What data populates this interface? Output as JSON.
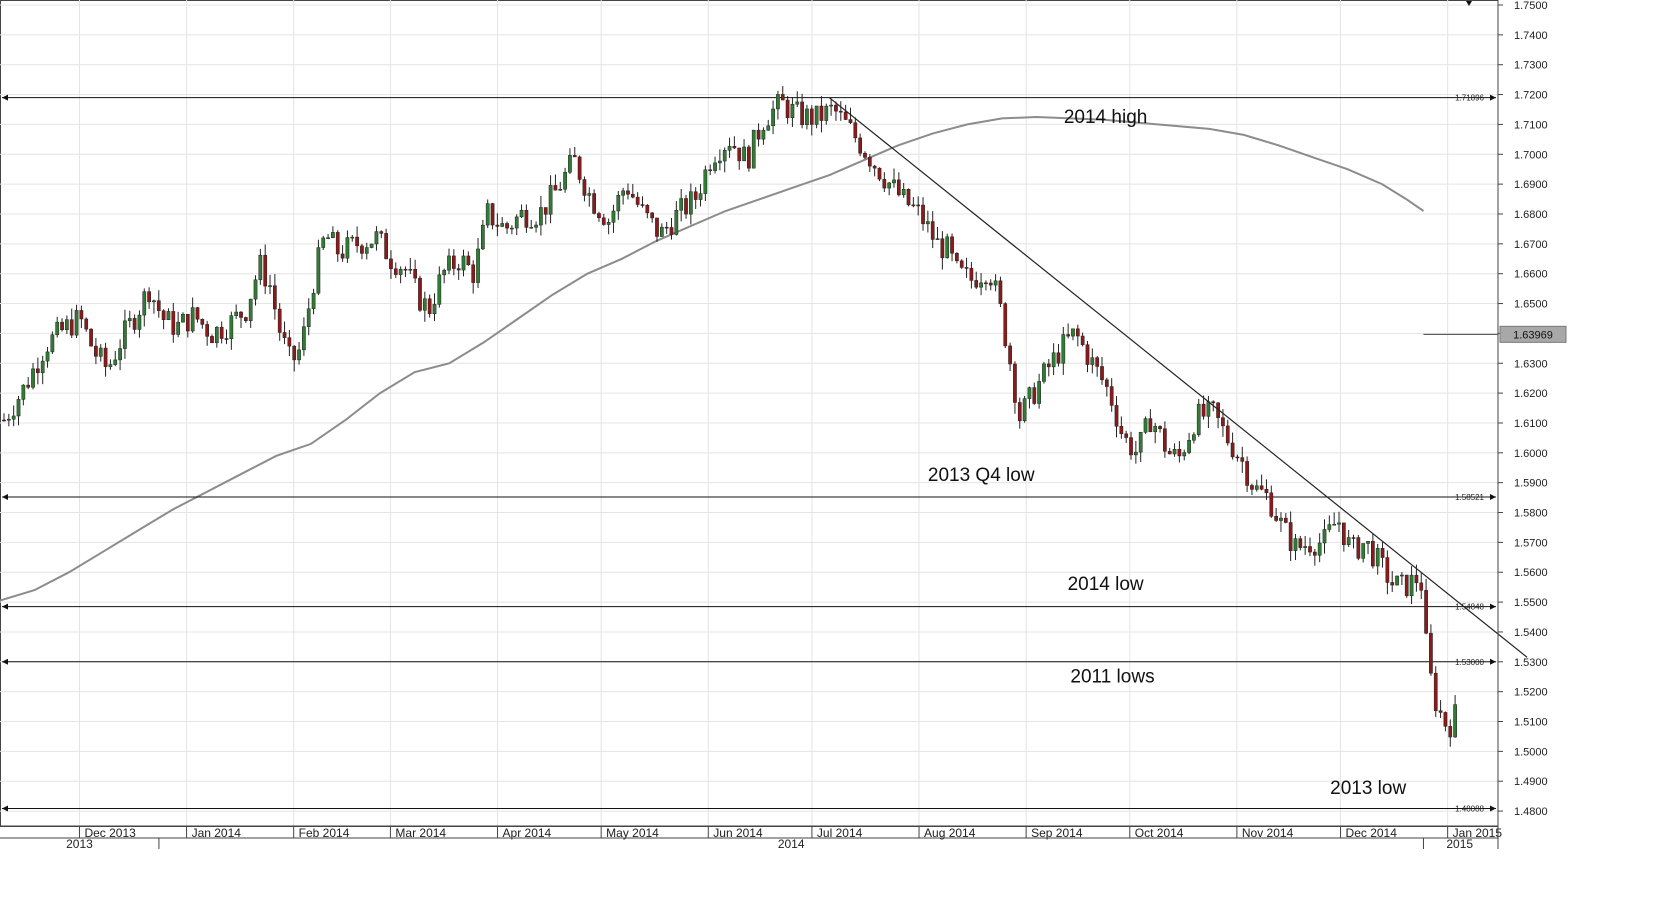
{
  "chart_data": {
    "type": "candlestick",
    "title": "",
    "xlabel": "",
    "ylabel": "",
    "ylim": [
      1.475,
      1.75
    ],
    "grid": true,
    "y_ticks": [
      "1.4800",
      "1.4900",
      "1.5000",
      "1.5100",
      "1.5200",
      "1.5300",
      "1.5400",
      "1.5500",
      "1.5600",
      "1.5700",
      "1.5800",
      "1.5900",
      "1.6000",
      "1.6100",
      "1.6200",
      "1.6300",
      "1.6400",
      "1.6500",
      "1.6600",
      "1.6700",
      "1.6800",
      "1.6900",
      "1.7000",
      "1.7100",
      "1.7200",
      "1.7300",
      "1.7400",
      "1.7500"
    ],
    "x_months": [
      {
        "label": "Dec 2013",
        "day": 23
      },
      {
        "label": "Jan 2014",
        "day": 54
      },
      {
        "label": "Feb 2014",
        "day": 85
      },
      {
        "label": "Mar 2014",
        "day": 113
      },
      {
        "label": "Apr 2014",
        "day": 144
      },
      {
        "label": "May 2014",
        "day": 174
      },
      {
        "label": "Jun 2014",
        "day": 205
      },
      {
        "label": "Jul 2014",
        "day": 235
      },
      {
        "label": "Aug 2014",
        "day": 266
      },
      {
        "label": "Sep 2014",
        "day": 297
      },
      {
        "label": "Oct 2014",
        "day": 327
      },
      {
        "label": "Nov 2014",
        "day": 358
      },
      {
        "label": "Dec 2014",
        "day": 388
      },
      {
        "label": "Jan 2015",
        "day": 419
      }
    ],
    "x_years": [
      {
        "label": "2013",
        "start_day": 0,
        "end_day": 46
      },
      {
        "label": "2014",
        "start_day": 46,
        "end_day": 412
      },
      {
        "label": "2015",
        "start_day": 412,
        "end_day": 433
      }
    ],
    "x_range": [
      0,
      433
    ],
    "horizontal_levels": [
      {
        "value": 1.71896,
        "label": "1.71896",
        "annotation": "2014 high",
        "annotation_day": 320,
        "annotation_value": 1.7105
      },
      {
        "value": 1.58521,
        "label": "1.58521",
        "annotation": "2013 Q4 low",
        "annotation_day": 284,
        "annotation_value": 1.5905
      },
      {
        "value": 1.54848,
        "label": "1.54848",
        "annotation": "2014 low",
        "annotation_day": 320,
        "annotation_value": 1.554
      },
      {
        "value": 1.53,
        "label": "1.53000",
        "annotation": "2011 lows",
        "annotation_day": 322,
        "annotation_value": 1.523
      },
      {
        "value": 1.48088,
        "label": "1.48088",
        "annotation": "2013 low",
        "annotation_day": 396,
        "annotation_value": 1.4858
      }
    ],
    "trendline": {
      "from": {
        "day": 240,
        "value": 1.719
      },
      "to": {
        "day": 442,
        "value": 1.5315
      }
    },
    "current_price": {
      "label": "1.63969",
      "value": 1.63969
    },
    "moving_average": {
      "name": "",
      "points": [
        [
          0,
          1.5505
        ],
        [
          10,
          1.554
        ],
        [
          20,
          1.56
        ],
        [
          30,
          1.567
        ],
        [
          40,
          1.574
        ],
        [
          50,
          1.581
        ],
        [
          60,
          1.587
        ],
        [
          70,
          1.593
        ],
        [
          80,
          1.599
        ],
        [
          90,
          1.603
        ],
        [
          100,
          1.611
        ],
        [
          110,
          1.62
        ],
        [
          120,
          1.627
        ],
        [
          130,
          1.63
        ],
        [
          140,
          1.637
        ],
        [
          150,
          1.645
        ],
        [
          160,
          1.653
        ],
        [
          170,
          1.66
        ],
        [
          180,
          1.665
        ],
        [
          190,
          1.671
        ],
        [
          200,
          1.676
        ],
        [
          210,
          1.681
        ],
        [
          220,
          1.685
        ],
        [
          230,
          1.689
        ],
        [
          240,
          1.693
        ],
        [
          250,
          1.698
        ],
        [
          260,
          1.703
        ],
        [
          270,
          1.707
        ],
        [
          280,
          1.71
        ],
        [
          290,
          1.712
        ],
        [
          300,
          1.7125
        ],
        [
          310,
          1.712
        ],
        [
          320,
          1.7115
        ],
        [
          330,
          1.7105
        ],
        [
          340,
          1.7095
        ],
        [
          350,
          1.7085
        ],
        [
          360,
          1.7065
        ],
        [
          370,
          1.703
        ],
        [
          380,
          1.699
        ],
        [
          390,
          1.695
        ],
        [
          400,
          1.69
        ],
        [
          407,
          1.685
        ],
        [
          412,
          1.681
        ]
      ]
    },
    "price_path": [
      [
        0,
        1.611
      ],
      [
        6,
        1.622
      ],
      [
        12,
        1.636
      ],
      [
        18,
        1.642
      ],
      [
        22,
        1.645
      ],
      [
        26,
        1.634
      ],
      [
        30,
        1.628
      ],
      [
        34,
        1.638
      ],
      [
        38,
        1.646
      ],
      [
        42,
        1.655
      ],
      [
        46,
        1.645
      ],
      [
        50,
        1.642
      ],
      [
        55,
        1.646
      ],
      [
        60,
        1.64
      ],
      [
        65,
        1.643
      ],
      [
        70,
        1.648
      ],
      [
        74,
        1.663
      ],
      [
        77,
        1.656
      ],
      [
        80,
        1.64
      ],
      [
        83,
        1.63
      ],
      [
        86,
        1.635
      ],
      [
        90,
        1.66
      ],
      [
        93,
        1.673
      ],
      [
        97,
        1.667
      ],
      [
        102,
        1.67
      ],
      [
        108,
        1.672
      ],
      [
        112,
        1.665
      ],
      [
        116,
        1.662
      ],
      [
        120,
        1.652
      ],
      [
        123,
        1.648
      ],
      [
        127,
        1.66
      ],
      [
        132,
        1.665
      ],
      [
        136,
        1.66
      ],
      [
        140,
        1.68
      ],
      [
        145,
        1.675
      ],
      [
        150,
        1.68
      ],
      [
        155,
        1.68
      ],
      [
        160,
        1.688
      ],
      [
        165,
        1.698
      ],
      [
        170,
        1.685
      ],
      [
        175,
        1.678
      ],
      [
        180,
        1.69
      ],
      [
        185,
        1.68
      ],
      [
        190,
        1.673
      ],
      [
        195,
        1.68
      ],
      [
        200,
        1.685
      ],
      [
        205,
        1.7
      ],
      [
        210,
        1.705
      ],
      [
        215,
        1.698
      ],
      [
        220,
        1.712
      ],
      [
        225,
        1.717
      ],
      [
        230,
        1.713
      ],
      [
        235,
        1.712
      ],
      [
        240,
        1.715
      ],
      [
        245,
        1.708
      ],
      [
        250,
        1.7
      ],
      [
        255,
        1.692
      ],
      [
        260,
        1.685
      ],
      [
        265,
        1.68
      ],
      [
        270,
        1.67
      ],
      [
        273,
        1.668
      ],
      [
        276,
        1.66
      ],
      [
        280,
        1.658
      ],
      [
        285,
        1.662
      ],
      [
        288,
        1.65
      ],
      [
        291,
        1.632
      ],
      [
        294,
        1.612
      ],
      [
        298,
        1.62
      ],
      [
        302,
        1.628
      ],
      [
        306,
        1.635
      ],
      [
        310,
        1.64
      ],
      [
        315,
        1.63
      ],
      [
        320,
        1.62
      ],
      [
        324,
        1.605
      ],
      [
        328,
        1.6
      ],
      [
        332,
        1.612
      ],
      [
        337,
        1.6
      ],
      [
        340,
        1.598
      ],
      [
        345,
        1.612
      ],
      [
        350,
        1.613
      ],
      [
        354,
        1.605
      ],
      [
        358,
        1.598
      ],
      [
        362,
        1.588
      ],
      [
        366,
        1.585
      ],
      [
        370,
        1.575
      ],
      [
        374,
        1.568
      ],
      [
        378,
        1.57
      ],
      [
        382,
        1.57
      ],
      [
        386,
        1.578
      ],
      [
        390,
        1.567
      ],
      [
        394,
        1.57
      ],
      [
        398,
        1.563
      ],
      [
        402,
        1.556
      ],
      [
        405,
        1.555
      ],
      [
        408,
        1.557
      ],
      [
        410,
        1.559
      ],
      [
        412,
        1.53
      ],
      [
        414,
        1.518
      ],
      [
        416,
        1.512
      ],
      [
        418,
        1.508
      ],
      [
        420,
        1.512
      ]
    ]
  }
}
